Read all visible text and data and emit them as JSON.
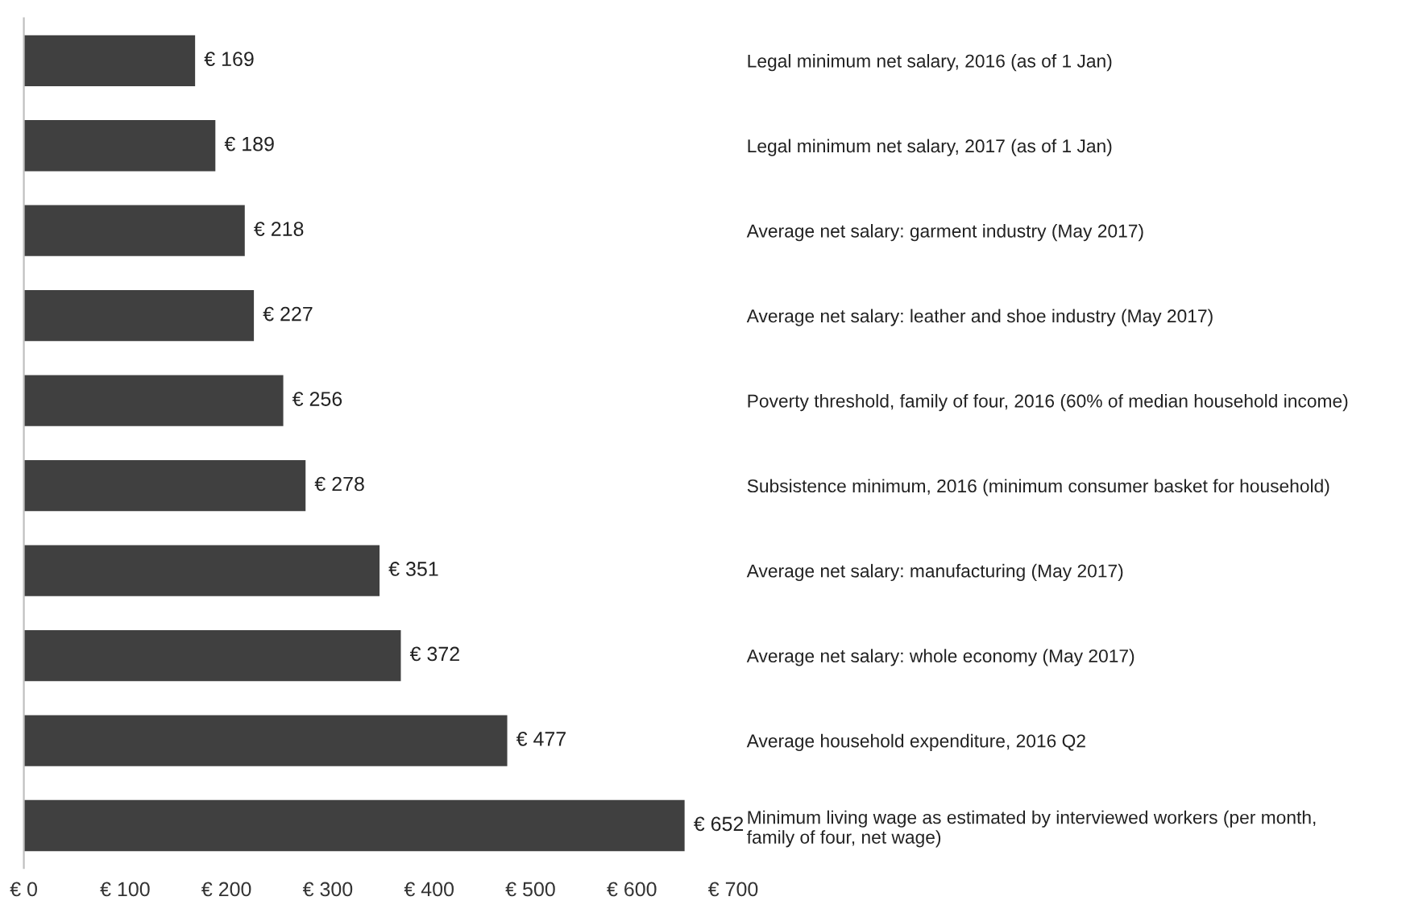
{
  "chart_data": {
    "type": "bar",
    "orientation": "horizontal",
    "categories": [
      "Legal minimum net salary, 2016 (as of 1 Jan)",
      "Legal minimum net salary, 2017 (as of 1 Jan)",
      "Average net salary: garment industry (May 2017)",
      "Average net salary: leather and shoe industry (May 2017)",
      "Poverty threshold, family of four, 2016 (60% of median household income)",
      "Subsistence minimum, 2016 (minimum consumer basket for household)",
      "Average net salary: manufacturing (May 2017)",
      "Average net salary: whole economy (May 2017)",
      "Average household expenditure, 2016 Q2",
      "Minimum living wage as estimated by interviewed workers (per month,\nfamily of four, net wage)"
    ],
    "values": [
      169,
      189,
      218,
      227,
      256,
      278,
      351,
      372,
      477,
      652
    ],
    "value_labels": [
      "€ 169",
      "€ 189",
      "€ 218",
      "€ 227",
      "€ 256",
      "€ 278",
      "€ 351",
      "€ 372",
      "€ 477",
      "€ 652"
    ],
    "color": "#404040",
    "xlim": [
      0,
      700
    ],
    "xticks": [
      {
        "value": 0,
        "label": "€ 0"
      },
      {
        "value": 100,
        "label": "€ 100"
      },
      {
        "value": 200,
        "label": "€ 200"
      },
      {
        "value": 300,
        "label": "€ 300"
      },
      {
        "value": 400,
        "label": "€ 400"
      },
      {
        "value": 500,
        "label": "€ 500"
      },
      {
        "value": 600,
        "label": "€ 600"
      },
      {
        "value": 700,
        "label": "€ 700"
      }
    ],
    "grid": false,
    "legend": false
  }
}
